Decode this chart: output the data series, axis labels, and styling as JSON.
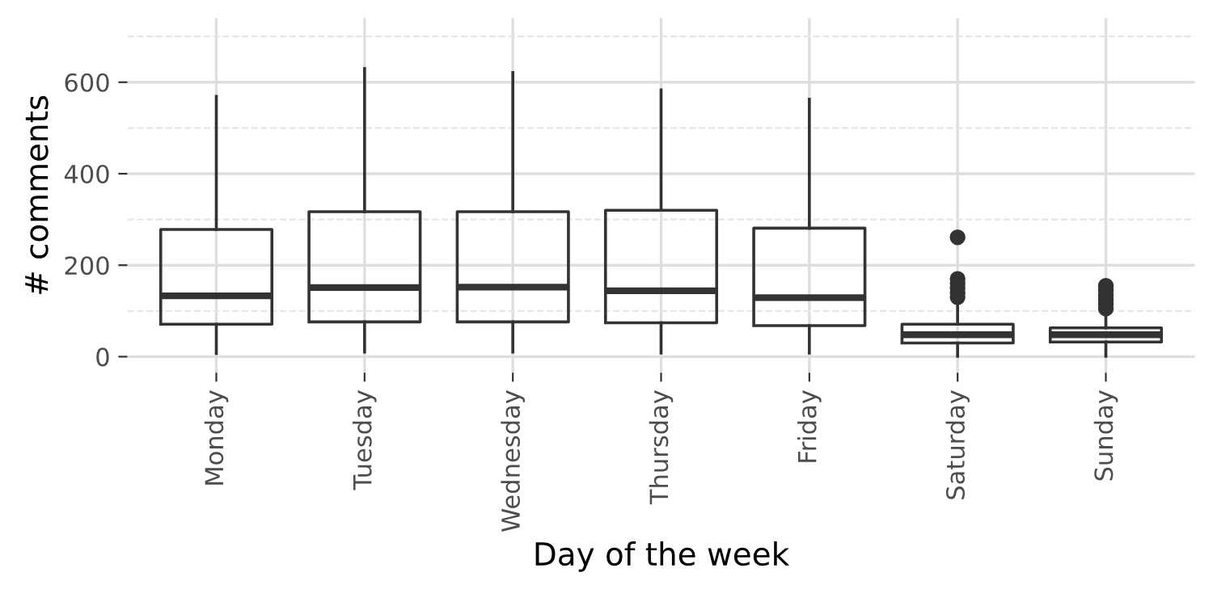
{
  "chart_data": {
    "type": "box",
    "xlabel": "Day of the week",
    "ylabel": "# comments",
    "categories": [
      "Monday",
      "Tuesday",
      "Wednesday",
      "Thursday",
      "Friday",
      "Saturday",
      "Sunday"
    ],
    "boxes": [
      {
        "low": 7,
        "q1": 71,
        "median": 133,
        "q3": 278,
        "high": 569
      },
      {
        "low": 10,
        "q1": 76,
        "median": 151,
        "q3": 317,
        "high": 630
      },
      {
        "low": 10,
        "q1": 76,
        "median": 152,
        "q3": 317,
        "high": 621
      },
      {
        "low": 8,
        "q1": 74,
        "median": 144,
        "q3": 320,
        "high": 583
      },
      {
        "low": 8,
        "q1": 68,
        "median": 129,
        "q3": 281,
        "high": 563
      },
      {
        "low": 1,
        "q1": 30,
        "median": 48,
        "q3": 71,
        "high": 117,
        "outliers": [
          261,
          170,
          160,
          150,
          140,
          130
        ]
      },
      {
        "low": 1,
        "q1": 32,
        "median": 48,
        "q3": 63,
        "high": 95,
        "outliers": [
          155,
          145,
          135,
          125,
          115,
          105
        ]
      }
    ],
    "ylim": [
      -35,
      740
    ],
    "yticks": [
      0,
      {
        "value": 100,
        "label": null
      },
      200,
      {
        "value": 300,
        "label": null
      },
      400,
      {
        "value": 500,
        "label": null
      },
      600,
      {
        "value": 700,
        "label": null
      }
    ],
    "grid": true,
    "color": "#333333"
  }
}
